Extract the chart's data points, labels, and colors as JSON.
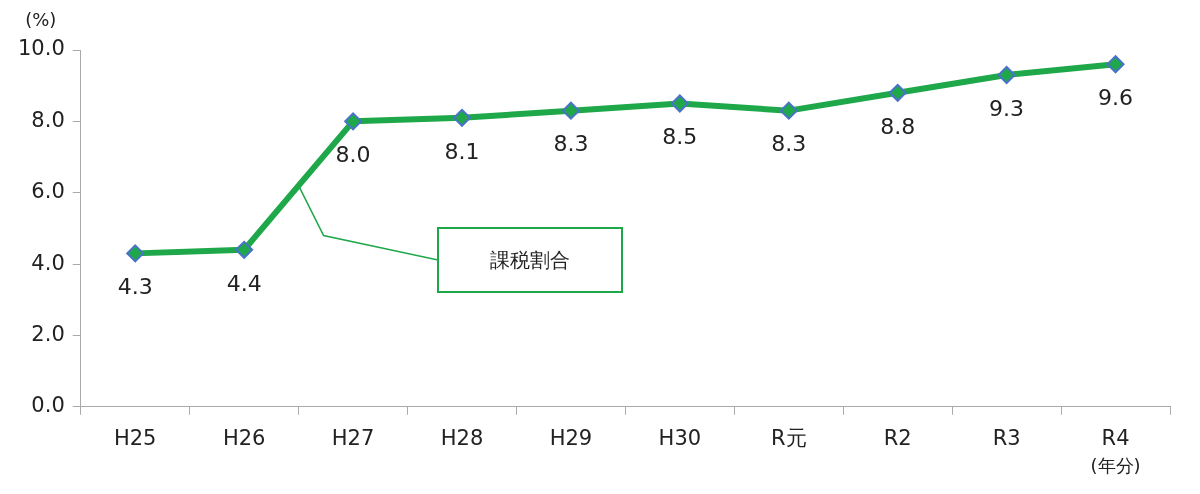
{
  "chart_data": {
    "type": "line",
    "ylabel": "(%)",
    "xlabel": "(年分)",
    "categories": [
      "H25",
      "H26",
      "H27",
      "H28",
      "H29",
      "H30",
      "R元",
      "R2",
      "R3",
      "R4"
    ],
    "series": [
      {
        "name": "課税割合",
        "color": "#1ea84a",
        "values": [
          4.3,
          4.4,
          8.0,
          8.1,
          8.3,
          8.5,
          8.3,
          8.8,
          9.3,
          9.6
        ],
        "value_labels": [
          "4.3",
          "4.4",
          "8.0",
          "8.1",
          "8.3",
          "8.5",
          "8.3",
          "8.8",
          "9.3",
          "9.6"
        ]
      }
    ],
    "ylim": [
      0,
      10
    ],
    "yticks": [
      {
        "value": 0,
        "label": "0.0"
      },
      {
        "value": 2,
        "label": "2.0"
      },
      {
        "value": 4,
        "label": "4.0"
      },
      {
        "value": 6,
        "label": "6.0"
      },
      {
        "value": 8,
        "label": "8.0"
      },
      {
        "value": 10,
        "label": "10.0"
      }
    ],
    "grid": false,
    "legend": false,
    "marker": "diamond",
    "line_style": "solid"
  }
}
